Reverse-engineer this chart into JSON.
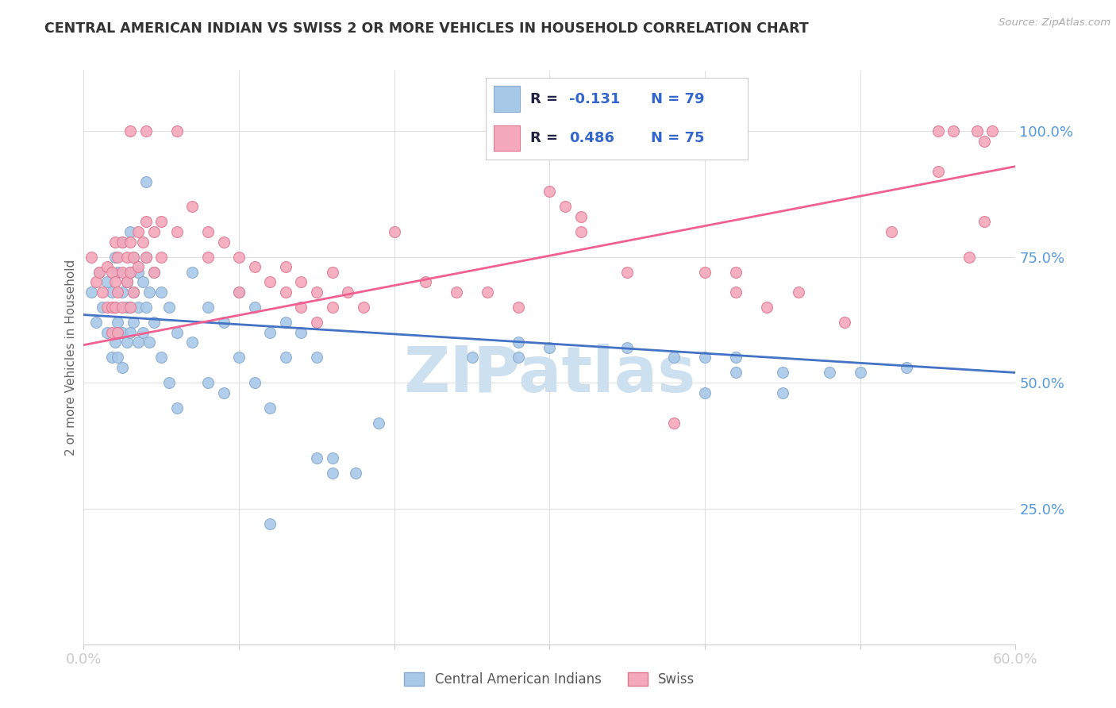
{
  "title": "CENTRAL AMERICAN INDIAN VS SWISS 2 OR MORE VEHICLES IN HOUSEHOLD CORRELATION CHART",
  "source": "Source: ZipAtlas.com",
  "ylabel": "2 or more Vehicles in Household",
  "x_min": 0.0,
  "x_max": 0.6,
  "y_min": -0.02,
  "y_max": 1.12,
  "y_ticks_right": [
    0.25,
    0.5,
    0.75,
    1.0
  ],
  "y_tick_labels_right": [
    "25.0%",
    "50.0%",
    "75.0%",
    "100.0%"
  ],
  "color_blue": "#a8c8e8",
  "color_pink": "#f4a8bc",
  "color_blue_edge": "#88aad0",
  "color_pink_edge": "#e07890",
  "color_blue_line": "#4472c4",
  "color_pink_line": "#f06090",
  "color_axis_labels": "#5599dd",
  "color_source": "#aaaaaa",
  "watermark_text": "ZIPatlas",
  "watermark_color": "#cce0f0",
  "background_color": "#ffffff",
  "grid_color": "#e0e0e0",
  "scatter_blue": [
    [
      0.005,
      0.68
    ],
    [
      0.008,
      0.62
    ],
    [
      0.01,
      0.72
    ],
    [
      0.012,
      0.65
    ],
    [
      0.015,
      0.7
    ],
    [
      0.015,
      0.6
    ],
    [
      0.018,
      0.68
    ],
    [
      0.018,
      0.55
    ],
    [
      0.02,
      0.75
    ],
    [
      0.02,
      0.65
    ],
    [
      0.02,
      0.58
    ],
    [
      0.022,
      0.72
    ],
    [
      0.022,
      0.62
    ],
    [
      0.022,
      0.55
    ],
    [
      0.025,
      0.78
    ],
    [
      0.025,
      0.68
    ],
    [
      0.025,
      0.6
    ],
    [
      0.025,
      0.53
    ],
    [
      0.028,
      0.7
    ],
    [
      0.028,
      0.65
    ],
    [
      0.028,
      0.58
    ],
    [
      0.03,
      0.8
    ],
    [
      0.03,
      0.72
    ],
    [
      0.03,
      0.65
    ],
    [
      0.03,
      0.6
    ],
    [
      0.032,
      0.75
    ],
    [
      0.032,
      0.68
    ],
    [
      0.032,
      0.62
    ],
    [
      0.035,
      0.72
    ],
    [
      0.035,
      0.65
    ],
    [
      0.035,
      0.58
    ],
    [
      0.038,
      0.7
    ],
    [
      0.038,
      0.6
    ],
    [
      0.04,
      0.9
    ],
    [
      0.04,
      0.75
    ],
    [
      0.04,
      0.65
    ],
    [
      0.042,
      0.68
    ],
    [
      0.042,
      0.58
    ],
    [
      0.045,
      0.72
    ],
    [
      0.045,
      0.62
    ],
    [
      0.05,
      0.68
    ],
    [
      0.05,
      0.55
    ],
    [
      0.055,
      0.65
    ],
    [
      0.055,
      0.5
    ],
    [
      0.06,
      0.6
    ],
    [
      0.06,
      0.45
    ],
    [
      0.07,
      0.72
    ],
    [
      0.07,
      0.58
    ],
    [
      0.08,
      0.65
    ],
    [
      0.08,
      0.5
    ],
    [
      0.09,
      0.62
    ],
    [
      0.09,
      0.48
    ],
    [
      0.1,
      0.68
    ],
    [
      0.1,
      0.55
    ],
    [
      0.11,
      0.65
    ],
    [
      0.11,
      0.5
    ],
    [
      0.12,
      0.6
    ],
    [
      0.12,
      0.45
    ],
    [
      0.13,
      0.62
    ],
    [
      0.13,
      0.55
    ],
    [
      0.14,
      0.6
    ],
    [
      0.15,
      0.55
    ],
    [
      0.15,
      0.35
    ],
    [
      0.16,
      0.35
    ],
    [
      0.16,
      0.32
    ],
    [
      0.175,
      0.32
    ],
    [
      0.19,
      0.42
    ],
    [
      0.12,
      0.22
    ],
    [
      0.25,
      0.55
    ],
    [
      0.28,
      0.58
    ],
    [
      0.28,
      0.55
    ],
    [
      0.3,
      0.57
    ],
    [
      0.35,
      0.57
    ],
    [
      0.38,
      0.55
    ],
    [
      0.4,
      0.55
    ],
    [
      0.4,
      0.48
    ],
    [
      0.42,
      0.55
    ],
    [
      0.42,
      0.52
    ],
    [
      0.45,
      0.52
    ],
    [
      0.45,
      0.48
    ],
    [
      0.48,
      0.52
    ],
    [
      0.5,
      0.52
    ],
    [
      0.53,
      0.53
    ]
  ],
  "scatter_pink": [
    [
      0.005,
      0.75
    ],
    [
      0.008,
      0.7
    ],
    [
      0.01,
      0.72
    ],
    [
      0.012,
      0.68
    ],
    [
      0.015,
      0.73
    ],
    [
      0.015,
      0.65
    ],
    [
      0.018,
      0.72
    ],
    [
      0.018,
      0.65
    ],
    [
      0.018,
      0.6
    ],
    [
      0.02,
      0.78
    ],
    [
      0.02,
      0.7
    ],
    [
      0.02,
      0.65
    ],
    [
      0.022,
      0.75
    ],
    [
      0.022,
      0.68
    ],
    [
      0.022,
      0.6
    ],
    [
      0.025,
      0.78
    ],
    [
      0.025,
      0.72
    ],
    [
      0.025,
      0.65
    ],
    [
      0.028,
      0.75
    ],
    [
      0.028,
      0.7
    ],
    [
      0.03,
      0.78
    ],
    [
      0.03,
      0.72
    ],
    [
      0.03,
      0.65
    ],
    [
      0.032,
      0.75
    ],
    [
      0.032,
      0.68
    ],
    [
      0.035,
      0.8
    ],
    [
      0.035,
      0.73
    ],
    [
      0.038,
      0.78
    ],
    [
      0.04,
      0.82
    ],
    [
      0.04,
      0.75
    ],
    [
      0.045,
      0.8
    ],
    [
      0.045,
      0.72
    ],
    [
      0.05,
      0.82
    ],
    [
      0.05,
      0.75
    ],
    [
      0.06,
      0.8
    ],
    [
      0.07,
      0.85
    ],
    [
      0.08,
      0.8
    ],
    [
      0.08,
      0.75
    ],
    [
      0.09,
      0.78
    ],
    [
      0.1,
      0.75
    ],
    [
      0.1,
      0.68
    ],
    [
      0.11,
      0.73
    ],
    [
      0.12,
      0.7
    ],
    [
      0.13,
      0.73
    ],
    [
      0.13,
      0.68
    ],
    [
      0.14,
      0.7
    ],
    [
      0.14,
      0.65
    ],
    [
      0.15,
      0.68
    ],
    [
      0.15,
      0.62
    ],
    [
      0.16,
      0.72
    ],
    [
      0.16,
      0.65
    ],
    [
      0.17,
      0.68
    ],
    [
      0.18,
      0.65
    ],
    [
      0.2,
      0.8
    ],
    [
      0.22,
      0.7
    ],
    [
      0.24,
      0.68
    ],
    [
      0.26,
      0.68
    ],
    [
      0.28,
      0.65
    ],
    [
      0.3,
      0.88
    ],
    [
      0.31,
      0.85
    ],
    [
      0.32,
      0.83
    ],
    [
      0.32,
      0.8
    ],
    [
      0.35,
      0.72
    ],
    [
      0.38,
      0.42
    ],
    [
      0.4,
      0.72
    ],
    [
      0.42,
      0.72
    ],
    [
      0.42,
      0.68
    ],
    [
      0.44,
      0.65
    ],
    [
      0.46,
      0.68
    ],
    [
      0.49,
      0.62
    ],
    [
      0.52,
      0.8
    ],
    [
      0.55,
      0.92
    ],
    [
      0.57,
      0.75
    ],
    [
      0.58,
      0.98
    ],
    [
      0.58,
      0.82
    ],
    [
      0.03,
      1.0
    ],
    [
      0.04,
      1.0
    ],
    [
      0.06,
      1.0
    ],
    [
      0.55,
      1.0
    ],
    [
      0.56,
      1.0
    ],
    [
      0.575,
      1.0
    ],
    [
      0.585,
      1.0
    ]
  ],
  "blue_line_x": [
    0.0,
    0.6
  ],
  "blue_line_y": [
    0.635,
    0.52
  ],
  "pink_line_x": [
    0.0,
    0.6
  ],
  "pink_line_y": [
    0.575,
    0.93
  ]
}
